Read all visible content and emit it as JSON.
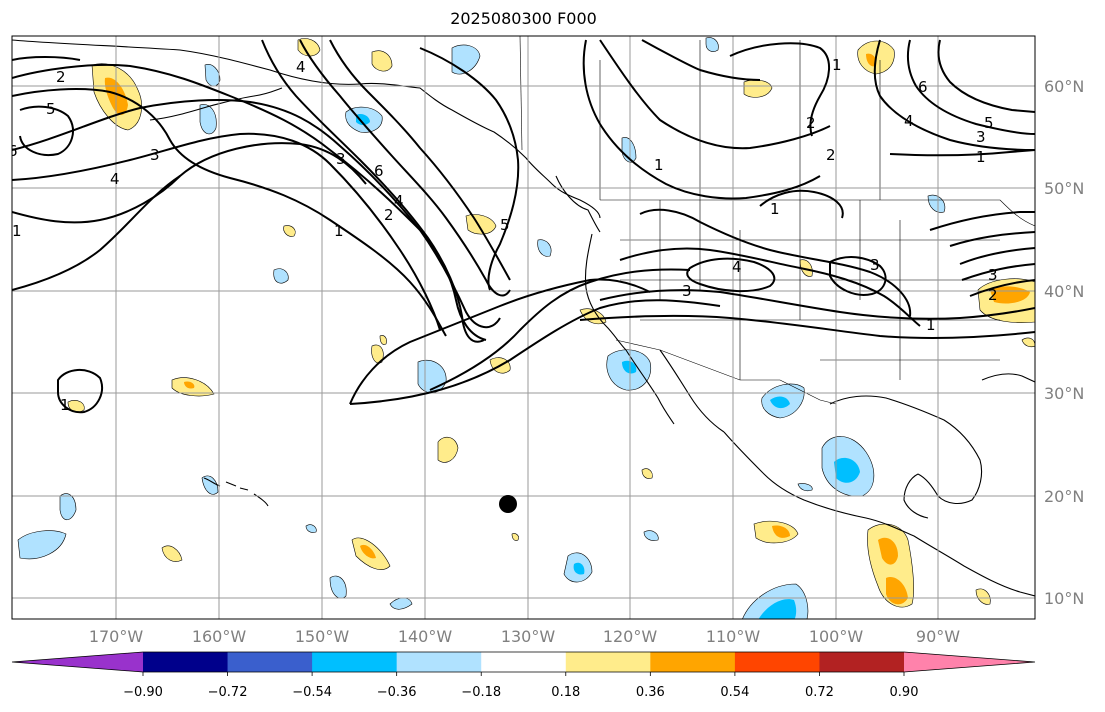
{
  "title": "2025080300 F000",
  "latitude_labels": [
    "60°N",
    "50°N",
    "40°N",
    "30°N",
    "20°N",
    "10°N"
  ],
  "longitude_labels": [
    "170°W",
    "160°W",
    "150°W",
    "140°W",
    "130°W",
    "120°W",
    "110°W",
    "100°W",
    "90°W"
  ],
  "colorbar": {
    "ticks": [
      "−0.90",
      "−0.72",
      "−0.54",
      "−0.36",
      "−0.18",
      "0.18",
      "0.36",
      "0.54",
      "0.72",
      "0.90"
    ],
    "colors": [
      "#9932cc",
      "#00008b",
      "#3a5fcd",
      "#00bfff",
      "#b0e2ff",
      "#ffffff",
      "#ffec8b",
      "#ffa500",
      "#ff4500",
      "#b22222",
      "#ff82ab"
    ]
  },
  "contour_labels": [
    "2",
    "5",
    "6",
    "4",
    "1",
    "4",
    "3",
    "3",
    "6",
    "4",
    "2",
    "1",
    "5",
    "1",
    "1",
    "1",
    "2",
    "1",
    "4",
    "3",
    "3",
    "4",
    "6",
    "2",
    "3",
    "1",
    "5",
    "3",
    "2",
    "1"
  ],
  "marker": "black-dot"
}
